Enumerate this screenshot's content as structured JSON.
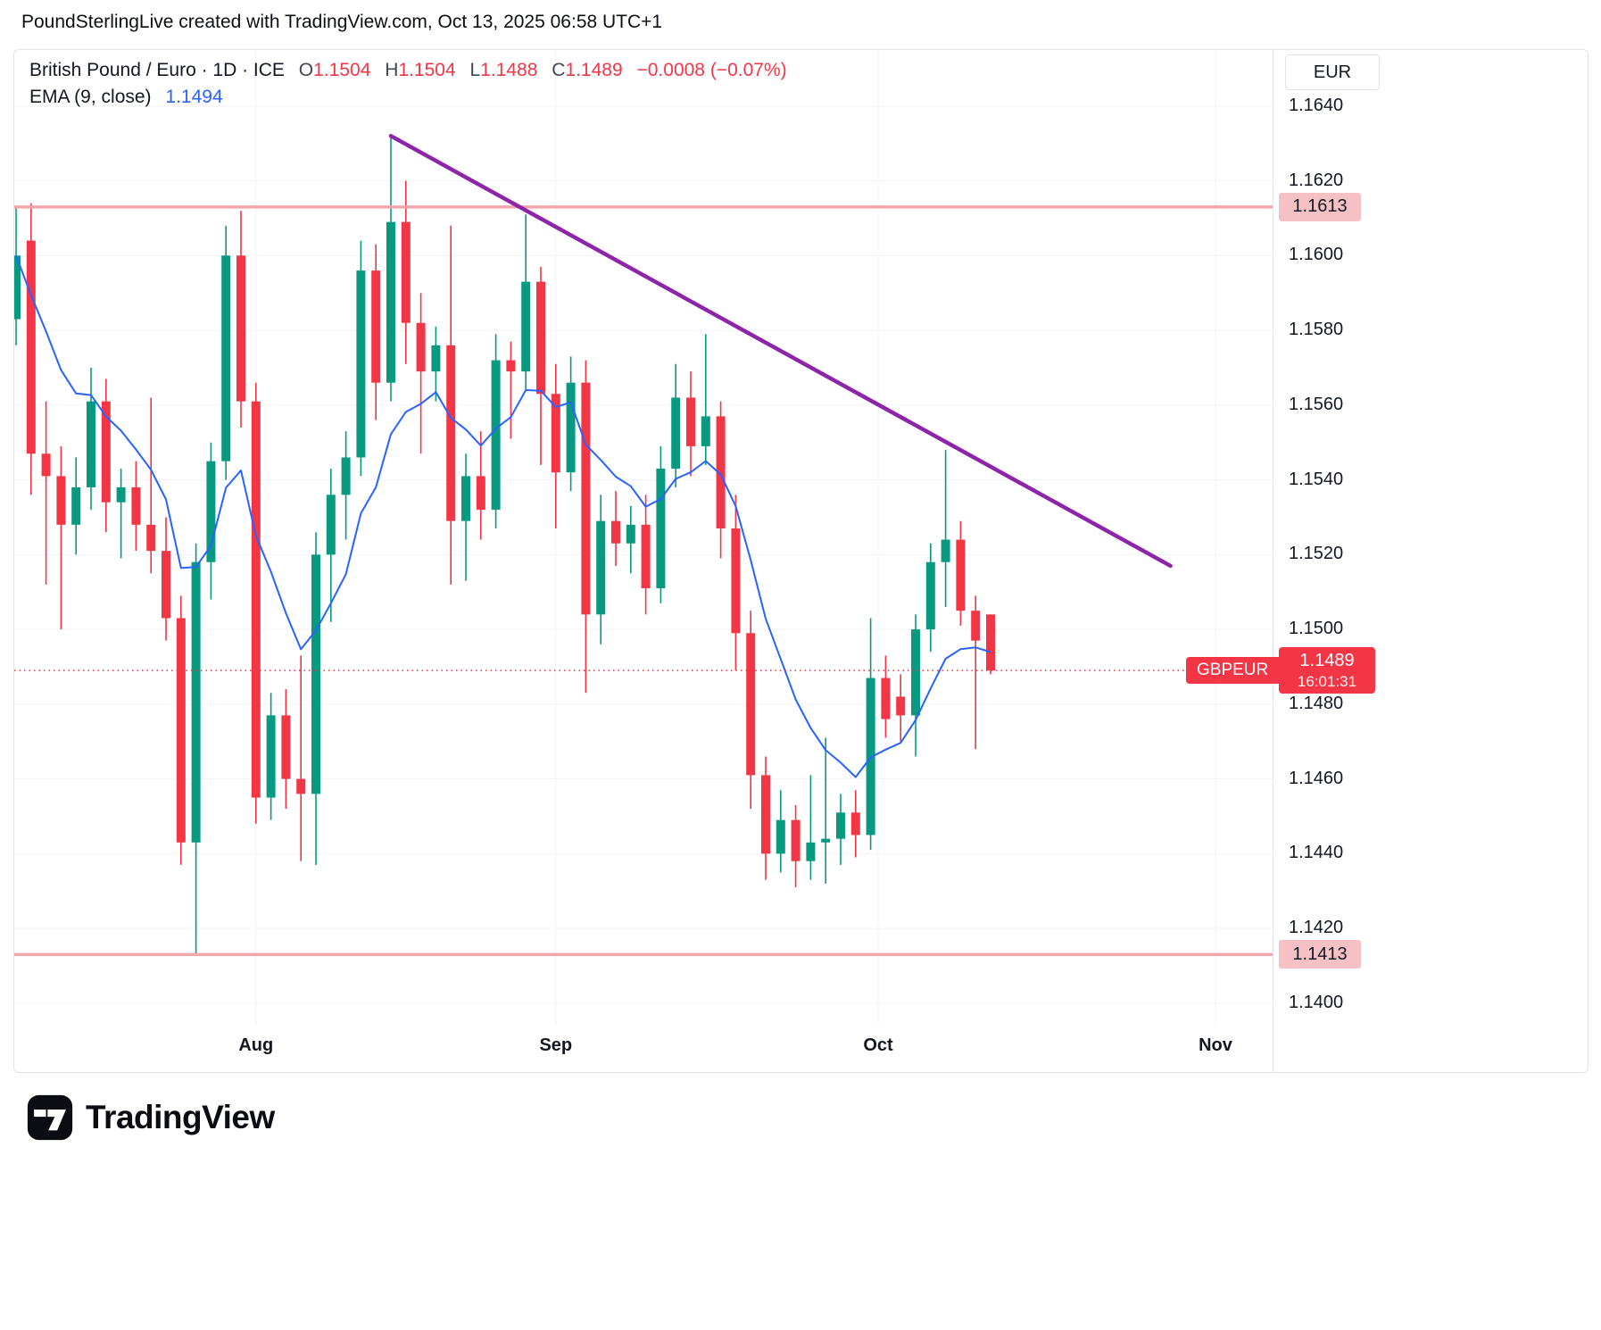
{
  "header": {
    "title": "PoundSterlingLive created with TradingView.com, Oct 13, 2025 06:58 UTC+1"
  },
  "legend": {
    "symbol_full": "British Pound / Euro · 1D · ICE",
    "ohlc": {
      "o_label": "O",
      "o": "1.1504",
      "h_label": "H",
      "h": "1.1504",
      "l_label": "L",
      "l": "1.1488",
      "c_label": "C",
      "c": "1.1489",
      "change": "−0.0008 (−0.07%)"
    },
    "ema_label": "EMA (9, close)",
    "ema_value": "1.1494"
  },
  "axis": {
    "currency": "EUR"
  },
  "footer": {
    "brand": "TradingView"
  },
  "colors": {
    "up": "#089981",
    "down": "#f23645",
    "ema": "#2962ff",
    "trend": "#8e24aa",
    "pink_line": "#f2a6ab",
    "pink_badge": "#f5c1c5",
    "badge_red": "#f23645",
    "grid": "#f0f3fa",
    "border": "#e0e3eb",
    "text": "#131722"
  },
  "chart_data": {
    "type": "candlestick",
    "title": "British Pound / Euro, 1D, ICE (GBPEUR)",
    "ylabel": "EUR",
    "price_range": [
      1.1394,
      1.1655
    ],
    "price_labels": [
      "1.1640",
      "1.1620",
      "1.1600",
      "1.1580",
      "1.1560",
      "1.1540",
      "1.1520",
      "1.1500",
      "1.1480",
      "1.1460",
      "1.1440",
      "1.1420",
      "1.1400"
    ],
    "month_ticks": [
      {
        "label": "Aug",
        "i": 16
      },
      {
        "label": "Sep",
        "i": 36
      },
      {
        "label": "Oct",
        "i": 57.5
      },
      {
        "label": "Nov",
        "i": 80
      }
    ],
    "levels": {
      "resistance": {
        "price": 1.1613,
        "label": "1.1613"
      },
      "support": {
        "price": 1.1413,
        "label": "1.1413"
      },
      "last": {
        "price": 1.1489,
        "label": "1.1489",
        "time": "16:01:31",
        "tag": "GBPEUR"
      }
    },
    "ema_period": 9,
    "trendline": {
      "from": {
        "i": 25,
        "p": 1.1632
      },
      "to": {
        "i": 77,
        "p": 1.1517
      }
    },
    "candles": [
      [
        1.1583,
        1.1613,
        1.1576,
        1.16
      ],
      [
        1.1604,
        1.1614,
        1.1536,
        1.1547
      ],
      [
        1.1547,
        1.1561,
        1.1512,
        1.1541
      ],
      [
        1.1541,
        1.1549,
        1.15,
        1.1528
      ],
      [
        1.1528,
        1.1546,
        1.152,
        1.1538
      ],
      [
        1.1538,
        1.157,
        1.1532,
        1.1561
      ],
      [
        1.1561,
        1.1567,
        1.1526,
        1.1534
      ],
      [
        1.1534,
        1.1543,
        1.1519,
        1.1538
      ],
      [
        1.1538,
        1.1545,
        1.1521,
        1.1528
      ],
      [
        1.1528,
        1.1562,
        1.1515,
        1.1521
      ],
      [
        1.1521,
        1.153,
        1.1497,
        1.1503
      ],
      [
        1.1503,
        1.1509,
        1.1437,
        1.1443
      ],
      [
        1.1443,
        1.1523,
        1.1413,
        1.1518
      ],
      [
        1.1518,
        1.155,
        1.1508,
        1.1545
      ],
      [
        1.1545,
        1.1608,
        1.154,
        1.16
      ],
      [
        1.16,
        1.1612,
        1.1554,
        1.1561
      ],
      [
        1.1561,
        1.1566,
        1.1448,
        1.1455
      ],
      [
        1.1455,
        1.1483,
        1.1449,
        1.1477
      ],
      [
        1.1477,
        1.1484,
        1.1452,
        1.146
      ],
      [
        1.146,
        1.1493,
        1.1438,
        1.1456
      ],
      [
        1.1456,
        1.1526,
        1.1437,
        1.152
      ],
      [
        1.152,
        1.1543,
        1.1502,
        1.1536
      ],
      [
        1.1536,
        1.1553,
        1.1524,
        1.1546
      ],
      [
        1.1546,
        1.1604,
        1.1541,
        1.1596
      ],
      [
        1.1596,
        1.1603,
        1.1556,
        1.1566
      ],
      [
        1.1566,
        1.1632,
        1.1561,
        1.1609
      ],
      [
        1.1609,
        1.162,
        1.1571,
        1.1582
      ],
      [
        1.1582,
        1.159,
        1.1547,
        1.1569
      ],
      [
        1.1569,
        1.1581,
        1.1561,
        1.1576
      ],
      [
        1.1576,
        1.1608,
        1.1512,
        1.1529
      ],
      [
        1.1529,
        1.1547,
        1.1513,
        1.1541
      ],
      [
        1.1541,
        1.1553,
        1.1524,
        1.1532
      ],
      [
        1.1532,
        1.1579,
        1.1527,
        1.1572
      ],
      [
        1.1572,
        1.1577,
        1.1551,
        1.1569
      ],
      [
        1.1569,
        1.1611,
        1.1564,
        1.1593
      ],
      [
        1.1593,
        1.1597,
        1.1544,
        1.1563
      ],
      [
        1.1563,
        1.1571,
        1.1527,
        1.1542
      ],
      [
        1.1542,
        1.1573,
        1.1537,
        1.1566
      ],
      [
        1.1566,
        1.1572,
        1.1483,
        1.1504
      ],
      [
        1.1504,
        1.1536,
        1.1496,
        1.1529
      ],
      [
        1.1529,
        1.1537,
        1.1517,
        1.1523
      ],
      [
        1.1523,
        1.1533,
        1.1515,
        1.1528
      ],
      [
        1.1528,
        1.1536,
        1.1504,
        1.1511
      ],
      [
        1.1511,
        1.1549,
        1.1507,
        1.1543
      ],
      [
        1.1543,
        1.1571,
        1.1538,
        1.1562
      ],
      [
        1.1562,
        1.1569,
        1.1541,
        1.1549
      ],
      [
        1.1549,
        1.1579,
        1.1544,
        1.1557
      ],
      [
        1.1557,
        1.1561,
        1.1519,
        1.1527
      ],
      [
        1.1527,
        1.1536,
        1.1489,
        1.1499
      ],
      [
        1.1499,
        1.1505,
        1.1452,
        1.1461
      ],
      [
        1.1461,
        1.1466,
        1.1433,
        1.144
      ],
      [
        1.144,
        1.1457,
        1.1435,
        1.1449
      ],
      [
        1.1449,
        1.1453,
        1.1431,
        1.1438
      ],
      [
        1.1438,
        1.1461,
        1.1433,
        1.1443
      ],
      [
        1.1443,
        1.1471,
        1.1432,
        1.1444
      ],
      [
        1.1444,
        1.1456,
        1.1437,
        1.1451
      ],
      [
        1.1451,
        1.1457,
        1.1439,
        1.1445
      ],
      [
        1.1445,
        1.1503,
        1.1441,
        1.1487
      ],
      [
        1.1487,
        1.1493,
        1.1471,
        1.1476
      ],
      [
        1.1482,
        1.1488,
        1.147,
        1.1477
      ],
      [
        1.1477,
        1.1504,
        1.1466,
        1.15
      ],
      [
        1.15,
        1.1523,
        1.1494,
        1.1518
      ],
      [
        1.1518,
        1.1548,
        1.1506,
        1.1524
      ],
      [
        1.1524,
        1.1529,
        1.1501,
        1.1505
      ],
      [
        1.1505,
        1.1509,
        1.1468,
        1.1497
      ],
      [
        1.1504,
        1.1504,
        1.1488,
        1.1489
      ]
    ]
  }
}
